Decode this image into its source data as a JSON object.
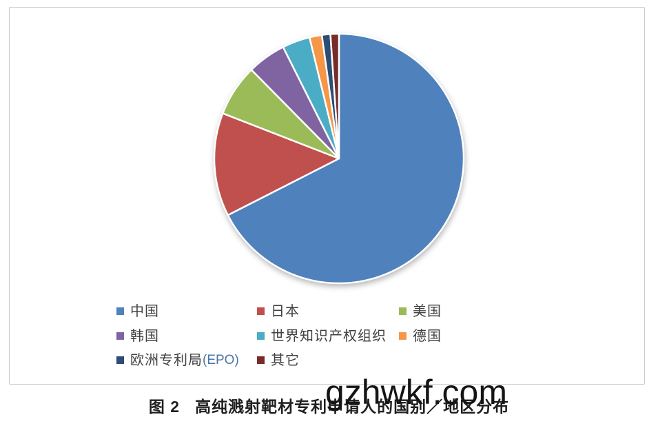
{
  "chart_data": {
    "type": "pie",
    "title": "高纯溅射靶材专利申请人的国别／地区分布",
    "legend_position": "bottom",
    "start_angle_deg": 0,
    "direction": "clockwise",
    "categories": [
      "中国",
      "日本",
      "美国",
      "韩国",
      "世界知识产权组织",
      "德国",
      "欧洲专利局(EPO)",
      "其它"
    ],
    "values_percent": [
      67.5,
      13.4,
      6.7,
      5.0,
      3.6,
      1.6,
      1.1,
      1.1
    ],
    "colors": [
      "#4f81bd",
      "#c0504d",
      "#9bbb59",
      "#8064a2",
      "#4bacc6",
      "#f79646",
      "#2c4d75",
      "#772c2a"
    ],
    "slice_border_color": "#ffffff"
  },
  "legend": {
    "text_color": "#404040",
    "suffix_color": "#4a74a6",
    "items": [
      {
        "label": "中国",
        "suffix": "",
        "color": "#4f81bd"
      },
      {
        "label": "日本",
        "suffix": "",
        "color": "#c0504d"
      },
      {
        "label": "美国",
        "suffix": "",
        "color": "#9bbb59"
      },
      {
        "label": "韩国",
        "suffix": "",
        "color": "#8064a2"
      },
      {
        "label": "世界知识产权组织",
        "suffix": "",
        "color": "#4bacc6"
      },
      {
        "label": "德国",
        "suffix": "",
        "color": "#f79646"
      },
      {
        "label": "欧洲专利局",
        "suffix": "(EPO)",
        "color": "#2c4d75"
      },
      {
        "label": "其它",
        "suffix": "",
        "color": "#772c2a"
      }
    ]
  },
  "caption": {
    "prefix": "图 2",
    "text": "高纯溅射靶材专利申请人的国别／地区分布"
  },
  "watermark": {
    "text": "gzhwkf.com"
  }
}
